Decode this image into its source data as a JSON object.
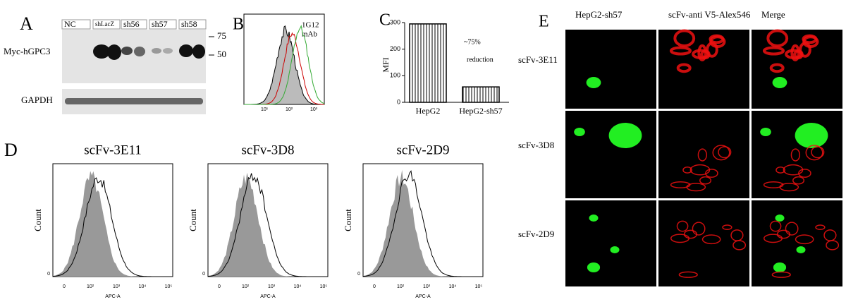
{
  "panel_a": {
    "letter": "A",
    "lanes": [
      "NC",
      "shLacZ",
      "sh56",
      "sh57",
      "sh58"
    ],
    "markers": [
      "75",
      "50"
    ],
    "rows": [
      "Myc-hGPC3",
      "GAPDH"
    ]
  },
  "panel_b": {
    "letter": "B",
    "label": [
      "1G12",
      "mAb"
    ],
    "xticks": [
      "10¹",
      "10²",
      "10³"
    ]
  },
  "chart_data": {
    "type": "bar",
    "letter": "C",
    "y_label": "MFI",
    "categories": [
      "HepG2",
      "HepG2-sh57"
    ],
    "values": [
      295,
      58
    ],
    "color": "#000000",
    "ylim": [
      0,
      300
    ],
    "yticks": [
      0,
      100,
      200,
      300
    ],
    "annotation": [
      "~75%",
      "reduction"
    ]
  },
  "panel_d": {
    "letter": "D",
    "plots": [
      {
        "title": "scFv-3E11",
        "y_label": "Count",
        "y_tick": "0",
        "x_label": "APC-A",
        "xticks": [
          "0",
          "10²",
          "10³",
          "10⁴",
          "10⁵"
        ]
      },
      {
        "title": "scFv-3D8",
        "y_label": "Count",
        "y_tick": "0",
        "x_label": "APC-A",
        "xticks": [
          "0",
          "10²",
          "10³",
          "10⁴",
          "10⁵"
        ]
      },
      {
        "title": "scFv-2D9",
        "y_label": "Count",
        "y_tick": "0",
        "x_label": "APC-A",
        "xticks": [
          "0",
          "10²",
          "10³",
          "10⁴",
          "10⁵"
        ]
      }
    ]
  },
  "panel_e": {
    "letter": "E",
    "columns": [
      "HepG2-sh57",
      "scFv-anti V5-Alex546",
      "Merge"
    ],
    "rows": [
      "scFv-3E11",
      "scFv-3D8",
      "scFv-2D9"
    ]
  }
}
